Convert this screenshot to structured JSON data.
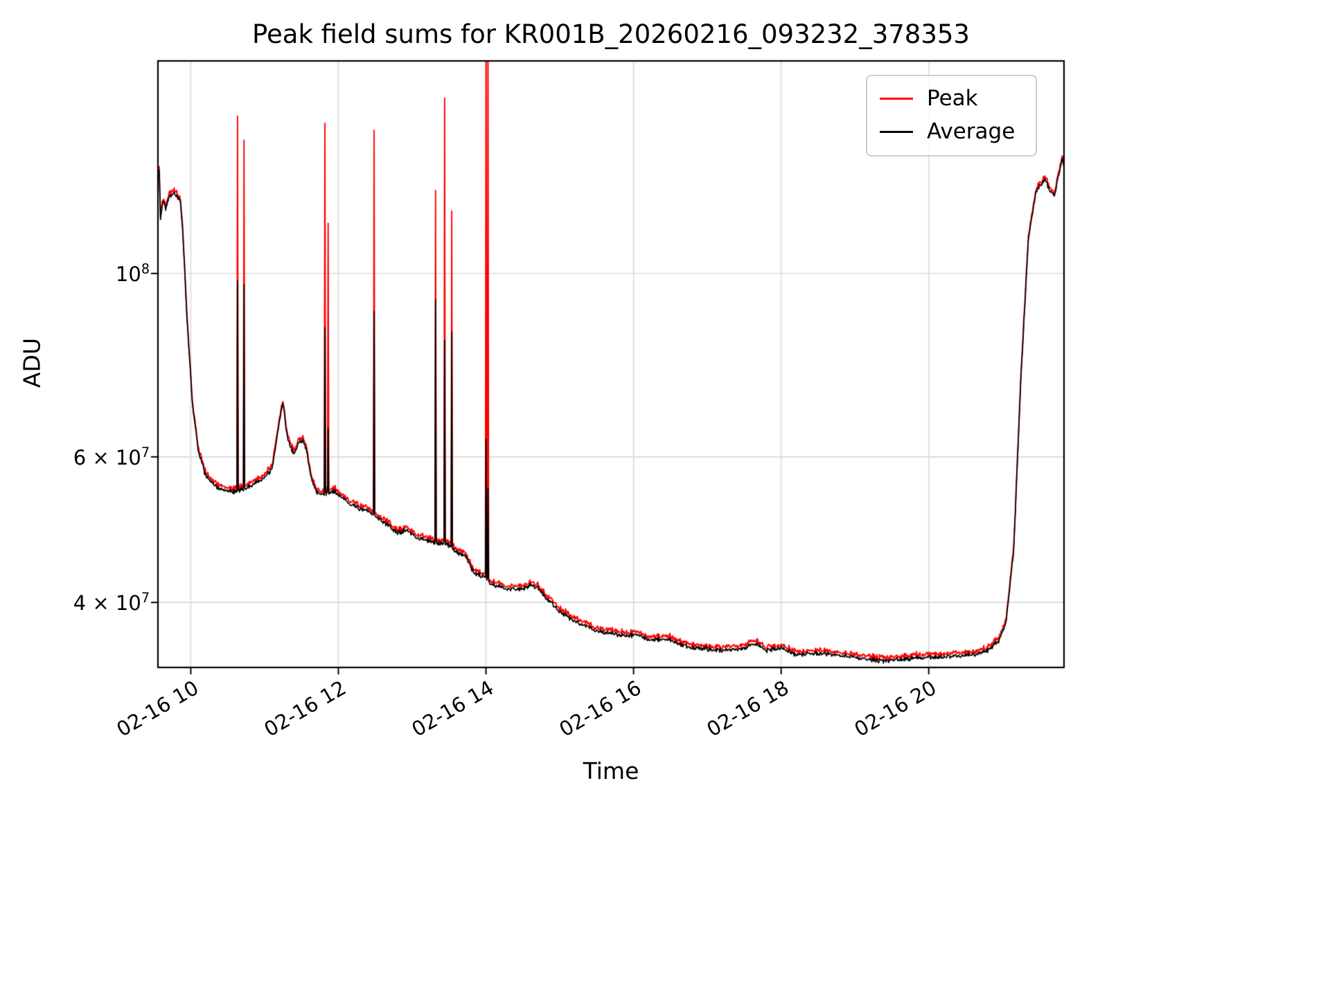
{
  "chart_data": {
    "type": "line",
    "title": "Peak field sums for KR001B_20260216_093232_378353",
    "xlabel": "Time",
    "ylabel": "ADU",
    "x_axis": {
      "range_hours": [
        9.555,
        21.833
      ],
      "ticks": [
        {
          "hour": 10,
          "label": "02-16 10"
        },
        {
          "hour": 12,
          "label": "02-16 12"
        },
        {
          "hour": 14,
          "label": "02-16 14"
        },
        {
          "hour": 16,
          "label": "02-16 16"
        },
        {
          "hour": 18,
          "label": "02-16 18"
        },
        {
          "hour": 20,
          "label": "02-16 20"
        }
      ]
    },
    "y_axis": {
      "scale": "log",
      "range": [
        33300000.0,
        181000000.0
      ],
      "ticks": [
        {
          "value": 100000000.0,
          "prefix": "10",
          "sup": "8"
        },
        {
          "value": 60000000.0,
          "prefix": "6 × 10",
          "sup": "7"
        },
        {
          "value": 40000000.0,
          "prefix": "4 × 10",
          "sup": "7"
        }
      ]
    },
    "series": [
      {
        "name": "Peak",
        "color": "#ff0000"
      },
      {
        "name": "Average",
        "color": "#000000"
      }
    ],
    "average_baseline": [
      [
        9.555,
        130000000.0
      ],
      [
        9.57,
        136000000.0
      ],
      [
        9.59,
        116000000.0
      ],
      [
        9.62,
        123000000.0
      ],
      [
        9.66,
        120000000.0
      ],
      [
        9.71,
        124000000.0
      ],
      [
        9.76,
        125000000.0
      ],
      [
        9.81,
        124000000.0
      ],
      [
        9.86,
        122000000.0
      ],
      [
        9.89,
        113000000.0
      ],
      [
        9.95,
        88000000.0
      ],
      [
        10.02,
        70000000.0
      ],
      [
        10.1,
        61000000.0
      ],
      [
        10.2,
        57000000.0
      ],
      [
        10.32,
        55500000.0
      ],
      [
        10.45,
        54500000.0
      ],
      [
        10.6,
        54500000.0
      ],
      [
        10.75,
        55000000.0
      ],
      [
        10.9,
        56000000.0
      ],
      [
        11.0,
        56500000.0
      ],
      [
        11.1,
        58000000.0
      ],
      [
        11.2,
        66000000.0
      ],
      [
        11.25,
        70000000.0
      ],
      [
        11.3,
        64000000.0
      ],
      [
        11.35,
        61500000.0
      ],
      [
        11.4,
        60500000.0
      ],
      [
        11.47,
        62500000.0
      ],
      [
        11.52,
        63000000.0
      ],
      [
        11.57,
        61000000.0
      ],
      [
        11.63,
        56500000.0
      ],
      [
        11.7,
        54500000.0
      ],
      [
        11.78,
        54000000.0
      ],
      [
        11.95,
        54500000.0
      ],
      [
        12.1,
        53000000.0
      ],
      [
        12.28,
        52000000.0
      ],
      [
        12.42,
        51500000.0
      ],
      [
        12.55,
        50500000.0
      ],
      [
        12.68,
        49500000.0
      ],
      [
        12.8,
        48500000.0
      ],
      [
        12.93,
        49000000.0
      ],
      [
        13.05,
        48000000.0
      ],
      [
        13.2,
        47500000.0
      ],
      [
        13.48,
        47000000.0
      ],
      [
        13.6,
        46000000.0
      ],
      [
        13.73,
        45500000.0
      ],
      [
        13.83,
        43500000.0
      ],
      [
        13.95,
        43000000.0
      ],
      [
        14.1,
        42000000.0
      ],
      [
        14.3,
        41500000.0
      ],
      [
        14.5,
        41500000.0
      ],
      [
        14.62,
        42000000.0
      ],
      [
        14.72,
        41500000.0
      ],
      [
        14.82,
        40500000.0
      ],
      [
        15.0,
        39000000.0
      ],
      [
        15.2,
        38000000.0
      ],
      [
        15.5,
        37000000.0
      ],
      [
        15.8,
        36500000.0
      ],
      [
        16.05,
        36500000.0
      ],
      [
        16.25,
        36000000.0
      ],
      [
        16.45,
        36200000.0
      ],
      [
        16.65,
        35500000.0
      ],
      [
        16.9,
        35200000.0
      ],
      [
        17.2,
        35000000.0
      ],
      [
        17.5,
        35200000.0
      ],
      [
        17.65,
        35700000.0
      ],
      [
        17.8,
        35000000.0
      ],
      [
        18.0,
        35200000.0
      ],
      [
        18.2,
        34600000.0
      ],
      [
        18.5,
        34700000.0
      ],
      [
        18.8,
        34500000.0
      ],
      [
        19.1,
        34200000.0
      ],
      [
        19.4,
        34000000.0
      ],
      [
        19.7,
        34200000.0
      ],
      [
        20.0,
        34300000.0
      ],
      [
        20.3,
        34400000.0
      ],
      [
        20.6,
        34600000.0
      ],
      [
        20.8,
        35000000.0
      ],
      [
        20.95,
        36000000.0
      ],
      [
        21.05,
        38000000.0
      ],
      [
        21.15,
        46000000.0
      ],
      [
        21.25,
        75000000.0
      ],
      [
        21.35,
        110000000.0
      ],
      [
        21.45,
        125000000.0
      ],
      [
        21.52,
        128000000.0
      ],
      [
        21.58,
        130000000.0
      ],
      [
        21.64,
        126000000.0
      ],
      [
        21.7,
        124000000.0
      ],
      [
        21.76,
        131000000.0
      ],
      [
        21.81,
        138000000.0
      ],
      [
        21.833,
        134000000.0
      ]
    ],
    "spikes": [
      {
        "t": 10.63,
        "peak": 155000000.0,
        "avg": 98000000.0
      },
      {
        "t": 10.72,
        "peak": 145000000.0,
        "avg": 97000000.0
      },
      {
        "t": 11.82,
        "peak": 152000000.0,
        "avg": 86000000.0
      },
      {
        "t": 11.86,
        "peak": 115000000.0,
        "avg": 65000000.0
      },
      {
        "t": 12.48,
        "peak": 149000000.0,
        "avg": 90000000.0
      },
      {
        "t": 13.32,
        "peak": 126000000.0,
        "avg": 93000000.0
      },
      {
        "t": 13.44,
        "peak": 163000000.0,
        "avg": 83000000.0
      },
      {
        "t": 13.54,
        "peak": 119000000.0,
        "avg": 85000000.0
      },
      {
        "t": 14.0,
        "peak": 220000000.0,
        "avg": 63000000.0
      },
      {
        "t": 14.03,
        "peak": 200000000.0,
        "avg": 55000000.0
      }
    ],
    "noise": {
      "avg_amp": 0.005,
      "peak_offset": 0.005,
      "peak_amp": 0.008,
      "seed": 42
    },
    "grid": true,
    "legend_position": "upper right"
  }
}
